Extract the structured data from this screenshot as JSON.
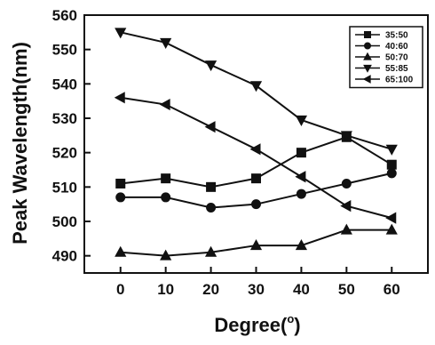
{
  "chart_data": {
    "type": "line",
    "xlabel": "Degree(°)",
    "xlabel_main": "Degree(",
    "xlabel_sup": "o",
    "xlabel_end": ")",
    "ylabel": "Peak Wavelength(nm)",
    "x": [
      0,
      10,
      20,
      30,
      40,
      50,
      60
    ],
    "xlim": [
      -8,
      68
    ],
    "ylim": [
      485,
      560
    ],
    "x_ticks": [
      0,
      10,
      20,
      30,
      40,
      50,
      60
    ],
    "y_ticks": [
      490,
      500,
      510,
      520,
      530,
      540,
      550,
      560
    ],
    "grid": false,
    "legend_position": "top-right",
    "series": [
      {
        "name": "35:50",
        "marker": "square",
        "values": [
          511,
          512.5,
          510,
          512.5,
          520,
          524.5,
          516.5
        ]
      },
      {
        "name": "40:60",
        "marker": "circle",
        "values": [
          507,
          507,
          504,
          505,
          508,
          511,
          514
        ]
      },
      {
        "name": "50:70",
        "marker": "triangle-up",
        "values": [
          491,
          490,
          491,
          493,
          493,
          497.5,
          497.5
        ]
      },
      {
        "name": "55:85",
        "marker": "triangle-down",
        "values": [
          555,
          552,
          545.5,
          539.5,
          529.5,
          525,
          521
        ]
      },
      {
        "name": "65:100",
        "marker": "triangle-left",
        "values": [
          536,
          534,
          527.5,
          521,
          513,
          504.5,
          501
        ]
      }
    ],
    "colors": {
      "line": "#111111",
      "background": "#ffffff"
    }
  }
}
